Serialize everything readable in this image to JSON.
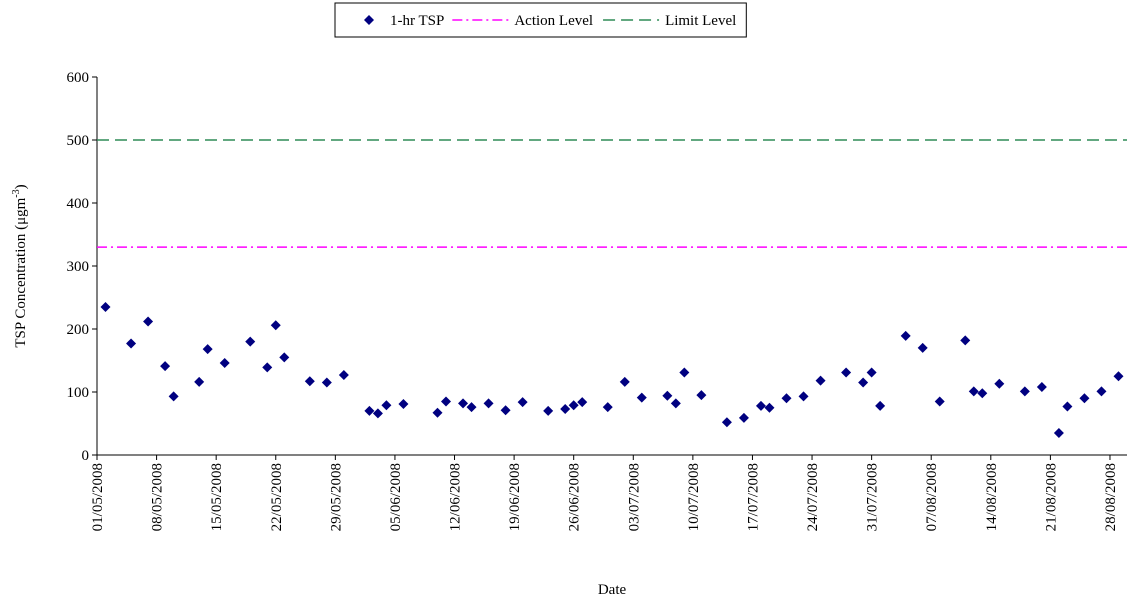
{
  "chart_data": {
    "type": "scatter",
    "xlabel": "Date",
    "ylabel": [
      "TSP Concentration (μgm",
      "-3",
      ")"
    ],
    "xlim": [
      "2008-05-01",
      "2008-08-30"
    ],
    "xticks": [
      {
        "value": "2008-05-01",
        "label": "01/05/2008"
      },
      {
        "value": "2008-05-08",
        "label": "08/05/2008"
      },
      {
        "value": "2008-05-15",
        "label": "15/05/2008"
      },
      {
        "value": "2008-05-22",
        "label": "22/05/2008"
      },
      {
        "value": "2008-05-29",
        "label": "29/05/2008"
      },
      {
        "value": "2008-06-05",
        "label": "05/06/2008"
      },
      {
        "value": "2008-06-12",
        "label": "12/06/2008"
      },
      {
        "value": "2008-06-19",
        "label": "19/06/2008"
      },
      {
        "value": "2008-06-26",
        "label": "26/06/2008"
      },
      {
        "value": "2008-07-03",
        "label": "03/07/2008"
      },
      {
        "value": "2008-07-10",
        "label": "10/07/2008"
      },
      {
        "value": "2008-07-17",
        "label": "17/07/2008"
      },
      {
        "value": "2008-07-24",
        "label": "24/07/2008"
      },
      {
        "value": "2008-07-31",
        "label": "31/07/2008"
      },
      {
        "value": "2008-08-07",
        "label": "07/08/2008"
      },
      {
        "value": "2008-08-14",
        "label": "14/08/2008"
      },
      {
        "value": "2008-08-21",
        "label": "21/08/2008"
      },
      {
        "value": "2008-08-28",
        "label": "28/08/2008"
      }
    ],
    "ylim": [
      0,
      600
    ],
    "yticks": [
      0,
      100,
      200,
      300,
      400,
      500,
      600
    ],
    "grid": false,
    "legend": "top",
    "series": [
      {
        "name": "1-hr TSP",
        "color": "#000080",
        "x": [
          "2008-05-02",
          "2008-05-05",
          "2008-05-07",
          "2008-05-09",
          "2008-05-10",
          "2008-05-13",
          "2008-05-14",
          "2008-05-16",
          "2008-05-19",
          "2008-05-21",
          "2008-05-22",
          "2008-05-23",
          "2008-05-26",
          "2008-05-28",
          "2008-05-30",
          "2008-06-02",
          "2008-06-03",
          "2008-06-04",
          "2008-06-06",
          "2008-06-10",
          "2008-06-11",
          "2008-06-13",
          "2008-06-14",
          "2008-06-16",
          "2008-06-18",
          "2008-06-20",
          "2008-06-23",
          "2008-06-25",
          "2008-06-26",
          "2008-06-27",
          "2008-06-30",
          "2008-07-02",
          "2008-07-04",
          "2008-07-07",
          "2008-07-08",
          "2008-07-09",
          "2008-07-11",
          "2008-07-14",
          "2008-07-16",
          "2008-07-18",
          "2008-07-19",
          "2008-07-21",
          "2008-07-23",
          "2008-07-25",
          "2008-07-28",
          "2008-07-30",
          "2008-07-31",
          "2008-08-01",
          "2008-08-04",
          "2008-08-06",
          "2008-08-08",
          "2008-08-11",
          "2008-08-12",
          "2008-08-13",
          "2008-08-15",
          "2008-08-18",
          "2008-08-20",
          "2008-08-22",
          "2008-08-23",
          "2008-08-25",
          "2008-08-27",
          "2008-08-29"
        ],
        "values": [
          235,
          177,
          212,
          141,
          93,
          116,
          168,
          146,
          180,
          139,
          206,
          155,
          117,
          115,
          127,
          70,
          66,
          79,
          81,
          67,
          85,
          82,
          76,
          82,
          71,
          84,
          70,
          73,
          79,
          84,
          76,
          116,
          91,
          94,
          82,
          131,
          95,
          52,
          59,
          78,
          75,
          90,
          93,
          118,
          131,
          115,
          131,
          78,
          189,
          170,
          85,
          182,
          101,
          98,
          113,
          101,
          108,
          35,
          77,
          90,
          101,
          125
        ]
      }
    ],
    "reference_lines": [
      {
        "name": "Action Level",
        "color": "#ff00ff",
        "value": 330,
        "dash": "dashdot"
      },
      {
        "name": "Limit Level",
        "color": "#2e8b57",
        "value": 500,
        "dash": "dash"
      }
    ]
  }
}
